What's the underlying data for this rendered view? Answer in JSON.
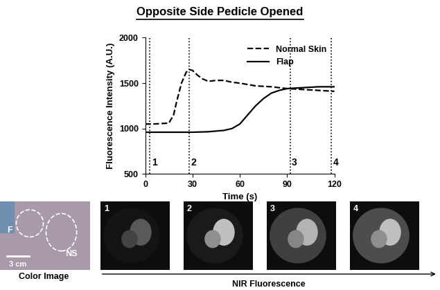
{
  "chart_data": {
    "type": "line",
    "title": "Opposite Side Pedicle Opened",
    "xlabel": "Time (s)",
    "ylabel": "Fluorescence Intensity (A.U.)",
    "xlim": [
      0,
      120
    ],
    "xticks": [
      0,
      30,
      60,
      90,
      120
    ],
    "ylim": [
      500,
      2000
    ],
    "yticks": [
      500,
      1000,
      1500,
      2000
    ],
    "legend": "upper right",
    "markers": [
      {
        "x": 3,
        "label": "1"
      },
      {
        "x": 28,
        "label": "2"
      },
      {
        "x": 92,
        "label": "3"
      },
      {
        "x": 118,
        "label": "4"
      }
    ],
    "series": [
      {
        "name": "Normal Skin",
        "color": "#000000",
        "line_style": "dashed",
        "x": [
          0,
          5,
          10,
          15,
          18,
          20,
          23,
          26,
          28,
          30,
          33,
          36,
          40,
          45,
          50,
          55,
          60,
          70,
          80,
          90,
          100,
          110,
          120
        ],
        "values": [
          1050,
          1050,
          1055,
          1060,
          1150,
          1300,
          1500,
          1620,
          1650,
          1640,
          1590,
          1550,
          1520,
          1530,
          1530,
          1510,
          1500,
          1470,
          1460,
          1440,
          1430,
          1420,
          1410
        ]
      },
      {
        "name": "Flap",
        "color": "#000000",
        "line_style": "solid",
        "x": [
          0,
          20,
          30,
          40,
          50,
          55,
          60,
          65,
          70,
          75,
          80,
          85,
          90,
          100,
          110,
          120
        ],
        "values": [
          960,
          960,
          960,
          965,
          980,
          1000,
          1050,
          1150,
          1250,
          1330,
          1390,
          1420,
          1440,
          1450,
          1460,
          1460
        ]
      }
    ]
  },
  "images": {
    "color_image": {
      "caption": "Color Image",
      "regions": [
        "F",
        "NS"
      ],
      "scale_bar": "3 cm"
    },
    "nir_panels": [
      "1",
      "2",
      "3",
      "4"
    ],
    "nir_caption": "NIR Fluorescence"
  }
}
